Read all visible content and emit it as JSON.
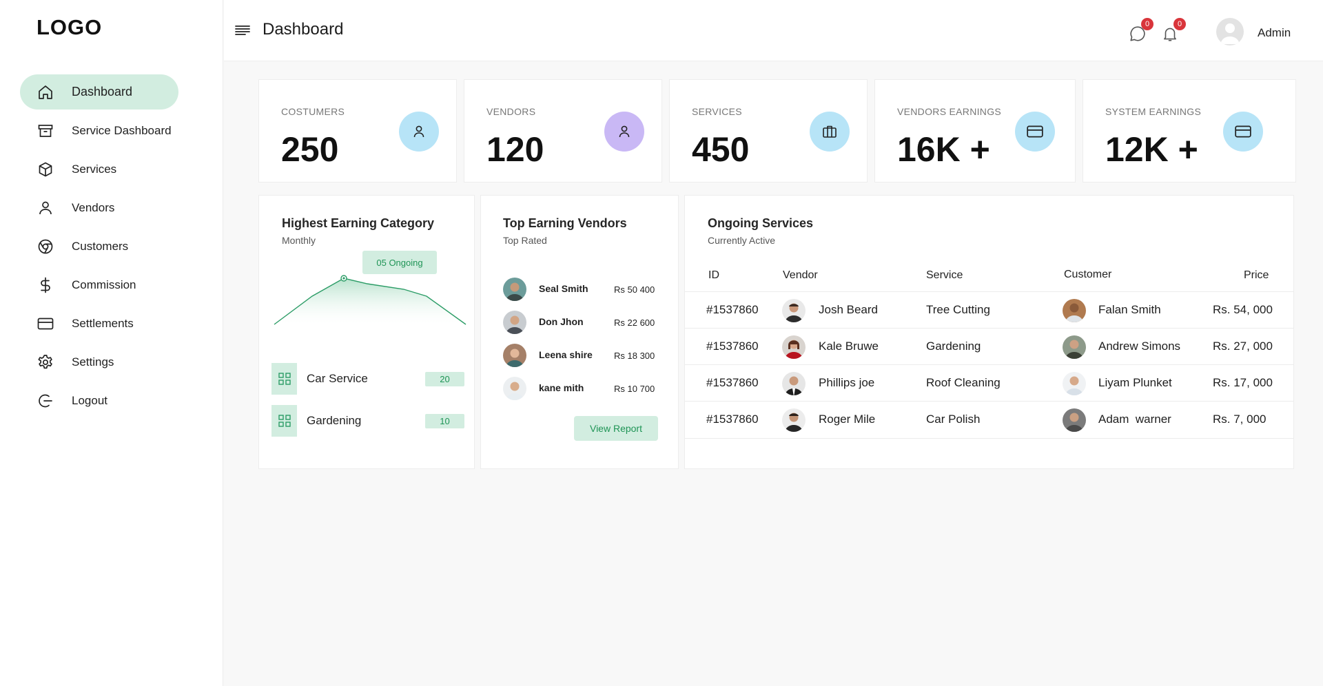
{
  "app": {
    "logo": "LOGO"
  },
  "sidebar": {
    "items": [
      {
        "label": "Dashboard",
        "icon": "home-icon",
        "active": true
      },
      {
        "label": "Service Dashboard",
        "icon": "archive-icon"
      },
      {
        "label": "Services",
        "icon": "box-icon"
      },
      {
        "label": "Vendors",
        "icon": "user-icon"
      },
      {
        "label": "Customers",
        "icon": "chrome-icon"
      },
      {
        "label": "Commission",
        "icon": "dollar-icon"
      },
      {
        "label": "Settlements",
        "icon": "card-icon"
      },
      {
        "label": "Settings",
        "icon": "gear-icon"
      },
      {
        "label": "Logout",
        "icon": "logout-icon"
      }
    ]
  },
  "header": {
    "title": "Dashboard",
    "messages_count": "0",
    "notifications_count": "0",
    "user_name": "Admin"
  },
  "stats": [
    {
      "label": "COSTUMERS",
      "value": "250",
      "icon": "user-icon",
      "color": "#b7e4f7"
    },
    {
      "label": "VENDORS",
      "value": "120",
      "icon": "user-icon",
      "color": "#c9b8f5"
    },
    {
      "label": "SERVICES",
      "value": "450",
      "icon": "briefcase-icon",
      "color": "#b7e4f7"
    },
    {
      "label": "VENDORS EARNINGS",
      "value": "16K +",
      "icon": "card-icon",
      "color": "#b7e4f7"
    },
    {
      "label": "SYSTEM EARNINGS",
      "value": "12K +",
      "icon": "card-icon",
      "color": "#b7e4f7"
    }
  ],
  "category_panel": {
    "title": "Highest Earning Category",
    "subtitle": "Monthly",
    "ongoing_label": "05  Ongoing",
    "categories": [
      {
        "name": "Car Service",
        "count": "20"
      },
      {
        "name": "Gardening",
        "count": "10"
      }
    ]
  },
  "vendors_panel": {
    "title": "Top Earning Vendors",
    "subtitle": "Top Rated",
    "vendors": [
      {
        "name": "Seal Smith",
        "amount": "Rs 50 400"
      },
      {
        "name": "Don Jhon",
        "amount": "Rs 22 600"
      },
      {
        "name": "Leena shire",
        "amount": "Rs 18 300"
      },
      {
        "name": "kane mith",
        "amount": "Rs 10 700"
      }
    ],
    "button": "View Report"
  },
  "services_panel": {
    "title": "Ongoing Services",
    "subtitle": "Currently Active",
    "columns": [
      "ID",
      "Vendor",
      "Service",
      "Customer",
      "Price"
    ],
    "rows": [
      {
        "id": "#1537860",
        "vendor": "Josh Beard",
        "service": "Tree Cutting",
        "customer": "Falan Smith",
        "price": "Rs. 54, 000"
      },
      {
        "id": "#1537860",
        "vendor": "Kale Bruwe",
        "service": "Gardening",
        "customer": "Andrew Simons",
        "price": "Rs. 27, 000"
      },
      {
        "id": "#1537860",
        "vendor": "Phillips joe",
        "service": "Roof Cleaning",
        "customer": "Liyam Plunket",
        "price": "Rs. 17, 000"
      },
      {
        "id": "#1537860",
        "vendor": "Roger Mile",
        "service": "Car Polish",
        "customer": "Adam  warner",
        "price": "Rs. 7, 000"
      }
    ]
  },
  "theme": {
    "accent": "#d2ede0",
    "accent_text": "#1e9455",
    "badge": "#d9353b"
  }
}
